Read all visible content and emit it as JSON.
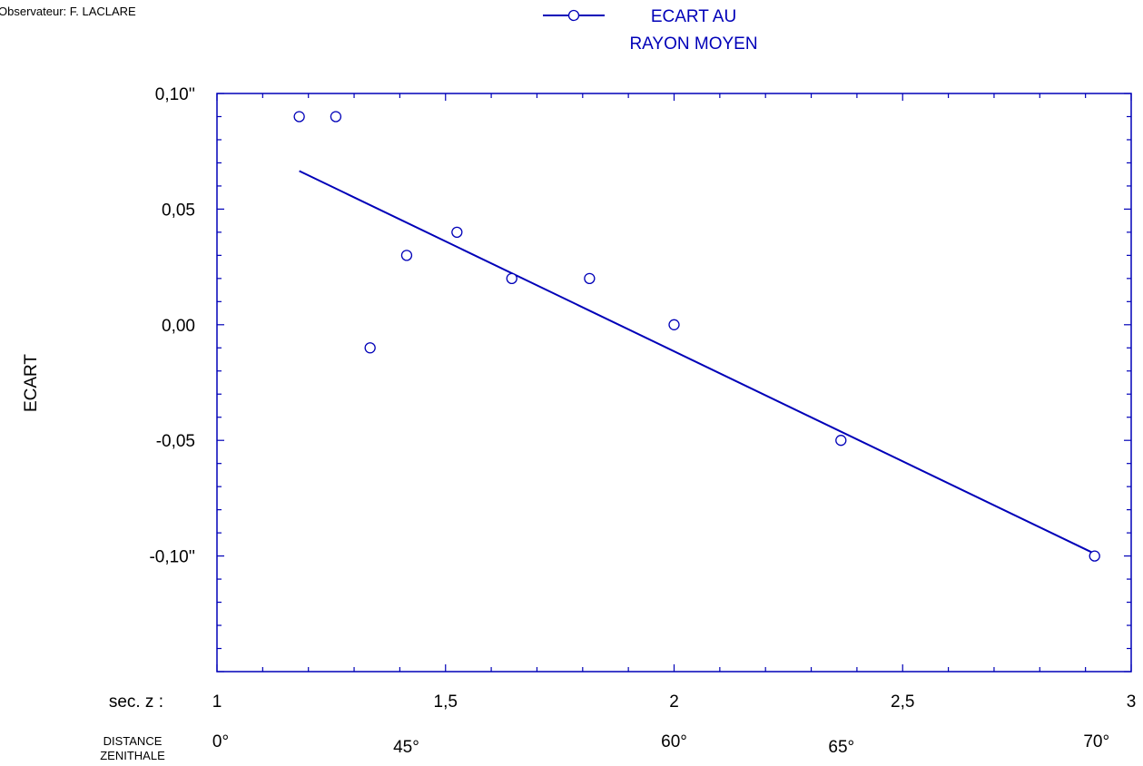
{
  "observer": "Observateur: F. LACLARE",
  "legend": {
    "line1": "ECART AU",
    "line2": "RAYON MOYEN"
  },
  "colors": {
    "series": "#0000b8",
    "axis": "#0000b8",
    "text": "#000000"
  },
  "chart_data": {
    "type": "scatter",
    "ylabel": "ECART",
    "xlabel_prefix": "sec. z :",
    "secondary_axis_label": [
      "DISTANCE",
      "ZENITHALE"
    ],
    "xlim": [
      1,
      3
    ],
    "ylim": [
      -0.15,
      0.1
    ],
    "y_ticks": [
      {
        "value": 0.1,
        "label": "0,10''"
      },
      {
        "value": 0.05,
        "label": "0,05"
      },
      {
        "value": 0.0,
        "label": "0,00"
      },
      {
        "value": -0.05,
        "label": "-0,05"
      },
      {
        "value": -0.1,
        "label": "-0,10''"
      }
    ],
    "x_ticks": [
      {
        "value": 1,
        "label": "1"
      },
      {
        "value": 1.5,
        "label": "1,5"
      },
      {
        "value": 2,
        "label": "2"
      },
      {
        "value": 2.5,
        "label": "2,5"
      },
      {
        "value": 3,
        "label": "3"
      }
    ],
    "zenith_ticks": [
      {
        "value": 1.0,
        "label": "0°"
      },
      {
        "value": 1.414,
        "label": "45°"
      },
      {
        "value": 2.0,
        "label": "60°"
      },
      {
        "value": 2.366,
        "label": "65°"
      },
      {
        "value": 2.924,
        "label": "70°"
      }
    ],
    "series": [
      {
        "name": "ECART AU RAYON MOYEN",
        "points": [
          {
            "x": 1.18,
            "y": 0.09
          },
          {
            "x": 1.26,
            "y": 0.09
          },
          {
            "x": 1.335,
            "y": -0.01
          },
          {
            "x": 1.415,
            "y": 0.03
          },
          {
            "x": 1.525,
            "y": 0.04
          },
          {
            "x": 1.645,
            "y": 0.02
          },
          {
            "x": 1.815,
            "y": 0.02
          },
          {
            "x": 2.0,
            "y": 0.0
          },
          {
            "x": 2.365,
            "y": -0.05
          },
          {
            "x": 2.92,
            "y": -0.1
          }
        ]
      }
    ],
    "fit_line": {
      "x": [
        1.18,
        2.92
      ],
      "y": [
        0.0665,
        -0.099
      ]
    },
    "grid": false
  }
}
